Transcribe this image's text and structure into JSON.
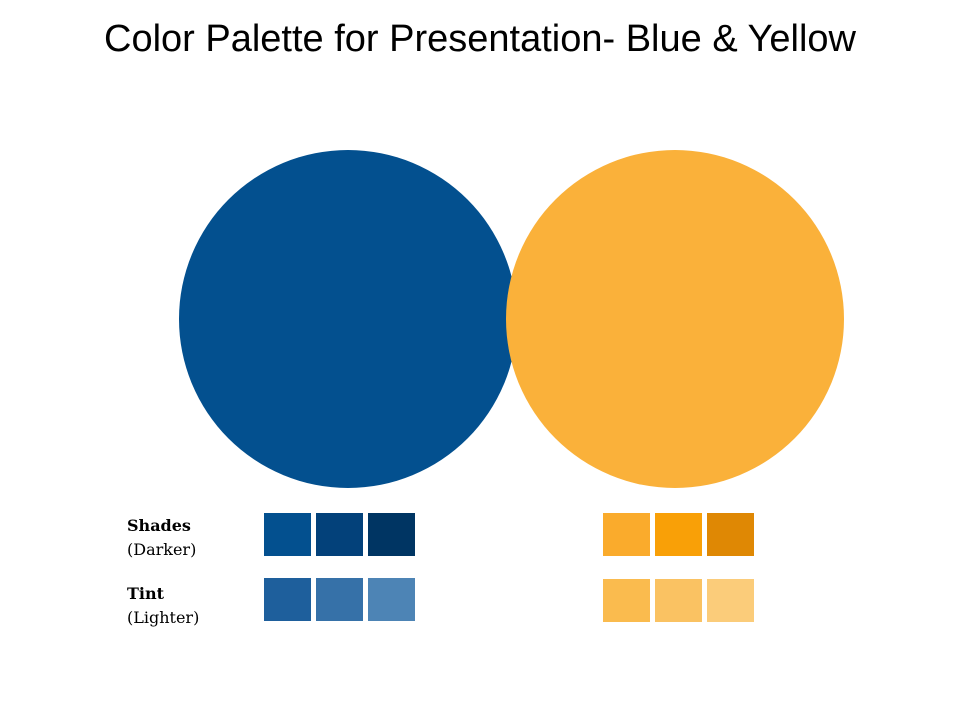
{
  "title": "Color Palette for Presentation- Blue & Yellow",
  "primary_colors": {
    "blue": "#03508F",
    "yellow": "#FAB13A"
  },
  "rows": {
    "shades": {
      "title": "Shades",
      "subtitle": "(Darker)"
    },
    "tint": {
      "title": "Tint",
      "subtitle": "(Lighter)"
    }
  },
  "palettes": {
    "blue": {
      "shades": [
        "#03508F",
        "#03417A",
        "#003563"
      ],
      "tints": [
        "#1E5F9C",
        "#3671A8",
        "#4D84B5"
      ]
    },
    "yellow": {
      "shades": [
        "#FAAB2C",
        "#F9A007",
        "#DF8804"
      ],
      "tints": [
        "#FABB4E",
        "#FAC262",
        "#FBCC7A"
      ]
    }
  }
}
